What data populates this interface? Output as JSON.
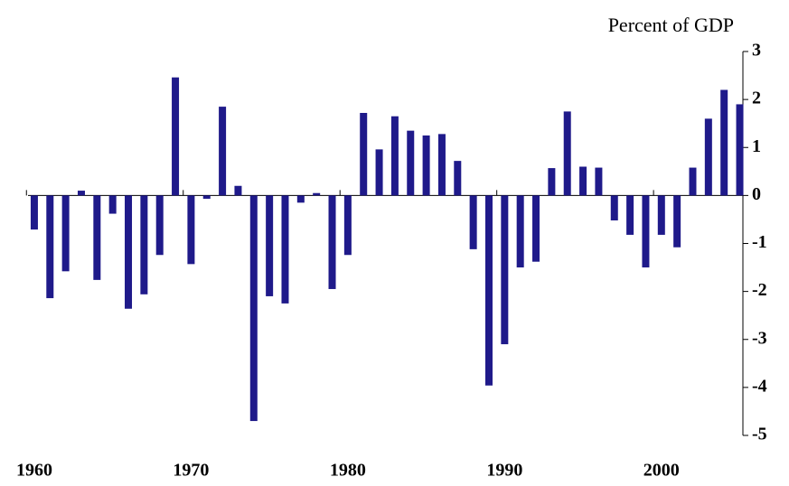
{
  "chart_data": {
    "type": "bar",
    "y_label": "Percent of GDP",
    "x": [
      1960,
      1961,
      1962,
      1963,
      1964,
      1965,
      1966,
      1967,
      1968,
      1969,
      1970,
      1971,
      1972,
      1973,
      1974,
      1975,
      1976,
      1977,
      1978,
      1979,
      1980,
      1981,
      1982,
      1983,
      1984,
      1985,
      1986,
      1987,
      1988,
      1989,
      1990,
      1991,
      1992,
      1993,
      1994,
      1995,
      1996,
      1997,
      1998,
      1999,
      2000,
      2001,
      2002,
      2003,
      2004,
      2005
    ],
    "values": [
      -0.71,
      -2.14,
      -1.58,
      0.1,
      -1.76,
      -0.38,
      -2.36,
      -2.06,
      -1.24,
      2.46,
      -1.43,
      -0.07,
      1.85,
      0.2,
      -4.7,
      -2.1,
      -2.25,
      -0.15,
      0.05,
      -1.95,
      -1.24,
      1.72,
      0.96,
      1.65,
      1.35,
      1.25,
      1.28,
      0.72,
      -1.12,
      -3.96,
      -3.1,
      -1.5,
      -1.38,
      0.57,
      1.75,
      0.6,
      0.58,
      -0.52,
      -0.82,
      -1.5,
      -0.82,
      -1.08,
      0.58,
      1.6,
      2.2,
      1.9
    ],
    "color": "#1f1a8a",
    "xlim": [
      1959.6,
      2005.2
    ],
    "xticks": [
      1960,
      1970,
      1980,
      1990,
      2000
    ],
    "ylim": [
      -5,
      3
    ],
    "yticks": [
      -5,
      -4,
      -3,
      -2,
      -1,
      0,
      1,
      2,
      3
    ],
    "grid": false
  }
}
